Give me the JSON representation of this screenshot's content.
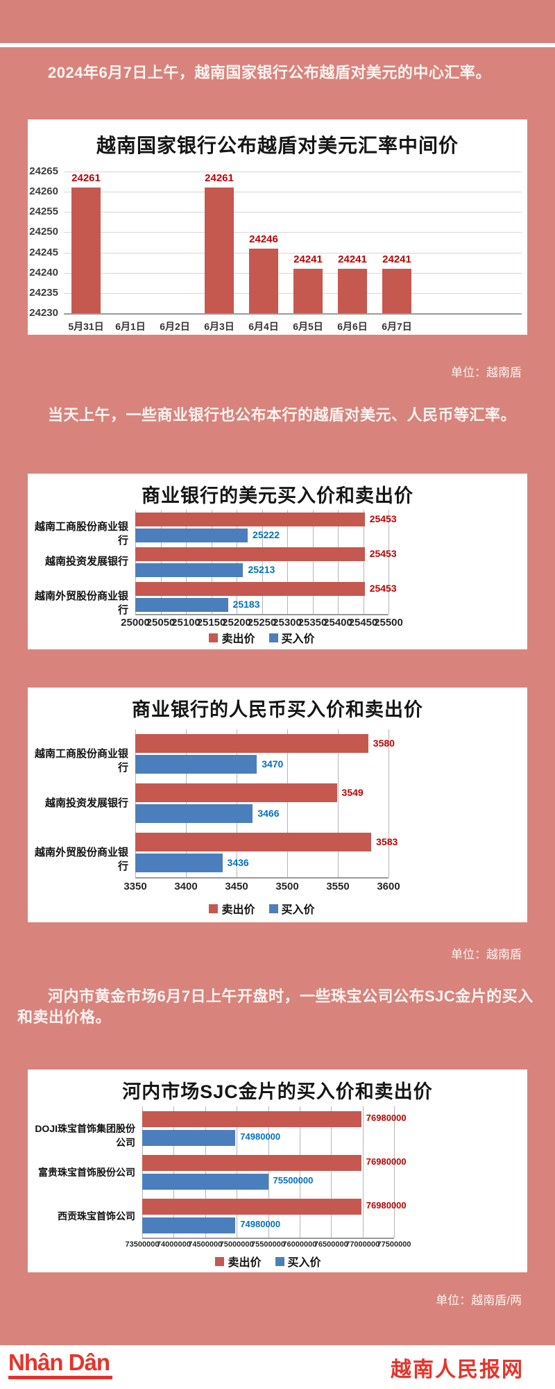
{
  "colors": {
    "background": "#d8847c",
    "sell_bar": "#c5584f",
    "buy_bar": "#4b7ebc",
    "sell_value_label": "#c00000",
    "buy_value_label": "#0070c0",
    "footer_red": "#e6332a"
  },
  "intro_1": "2024年6月7日上午，越南国家银行公布越盾对美元的中心汇率。",
  "intro_2": "当天上午，一些商业银行也公布本行的越盾对美元、人民币等汇率。",
  "intro_3": "河内市黄金市场6月7日上午开盘时，一些珠宝公司公布SJC金片的买入和卖出价格。",
  "units": {
    "chart_1": "单位：越南盾",
    "charts_2_3": "单位：越南盾",
    "chart_4": "单位：越南盾/两"
  },
  "footer": {
    "logo_text": "Nhân Dân",
    "site_name": "越南人民报网"
  },
  "chart_data": [
    {
      "type": "bar",
      "title": "越南国家银行公布越盾对美元汇率中间价",
      "categories": [
        "5月31日",
        "6月1日",
        "6月2日",
        "6月3日",
        "6月4日",
        "6月5日",
        "6月6日",
        "6月7日"
      ],
      "values": [
        24261,
        null,
        null,
        24261,
        24246,
        24241,
        24241,
        24241
      ],
      "ylim": [
        24230,
        24265
      ],
      "ytick_step": 5,
      "grid": true,
      "bar_color": "#c5584f",
      "value_label_color": "#c00000",
      "unit": "越南盾"
    },
    {
      "type": "bar-horizontal",
      "title": "商业银行的美元买入价和卖出价",
      "categories": [
        "越南工商股份商业银行",
        "越南投资发展银行",
        "越南外贸股份商业银行"
      ],
      "series": [
        {
          "name": "卖出价",
          "color": "#c5584f",
          "label_color": "#c00000",
          "values": [
            25453,
            25453,
            25453
          ]
        },
        {
          "name": "买入价",
          "color": "#4b7ebc",
          "label_color": "#0070c0",
          "values": [
            25222,
            25213,
            25183
          ]
        }
      ],
      "xlim": [
        25000,
        25500
      ],
      "xtick_step": 50,
      "grid": true,
      "legend_position": "bottom",
      "unit": "越南盾"
    },
    {
      "type": "bar-horizontal",
      "title": "商业银行的人民币买入价和卖出价",
      "categories": [
        "越南工商股份商业银行",
        "越南投资发展银行",
        "越南外贸股份商业银行"
      ],
      "series": [
        {
          "name": "卖出价",
          "color": "#c5584f",
          "label_color": "#c00000",
          "values": [
            3580,
            3549,
            3583
          ]
        },
        {
          "name": "买入价",
          "color": "#4b7ebc",
          "label_color": "#0070c0",
          "values": [
            3470,
            3466,
            3436
          ]
        }
      ],
      "xlim": [
        3350,
        3600
      ],
      "xtick_step": 50,
      "grid": true,
      "legend_position": "bottom",
      "unit": "越南盾"
    },
    {
      "type": "bar-horizontal",
      "title": "河内市场SJC金片的买入价和卖出价",
      "categories": [
        "DOJI珠宝首饰集团股份公司",
        "富贵珠宝首饰股份公司",
        "西贡珠宝首饰公司"
      ],
      "series": [
        {
          "name": "卖出价",
          "color": "#c5584f",
          "label_color": "#c00000",
          "values": [
            76980000,
            76980000,
            76980000
          ]
        },
        {
          "name": "买入价",
          "color": "#4b7ebc",
          "label_color": "#0070c0",
          "values": [
            74980000,
            75500000,
            74980000
          ]
        }
      ],
      "xlim": [
        73500000,
        77500000
      ],
      "xtick_step": 500000,
      "grid": true,
      "legend_position": "bottom",
      "unit": "越南盾/两"
    }
  ]
}
